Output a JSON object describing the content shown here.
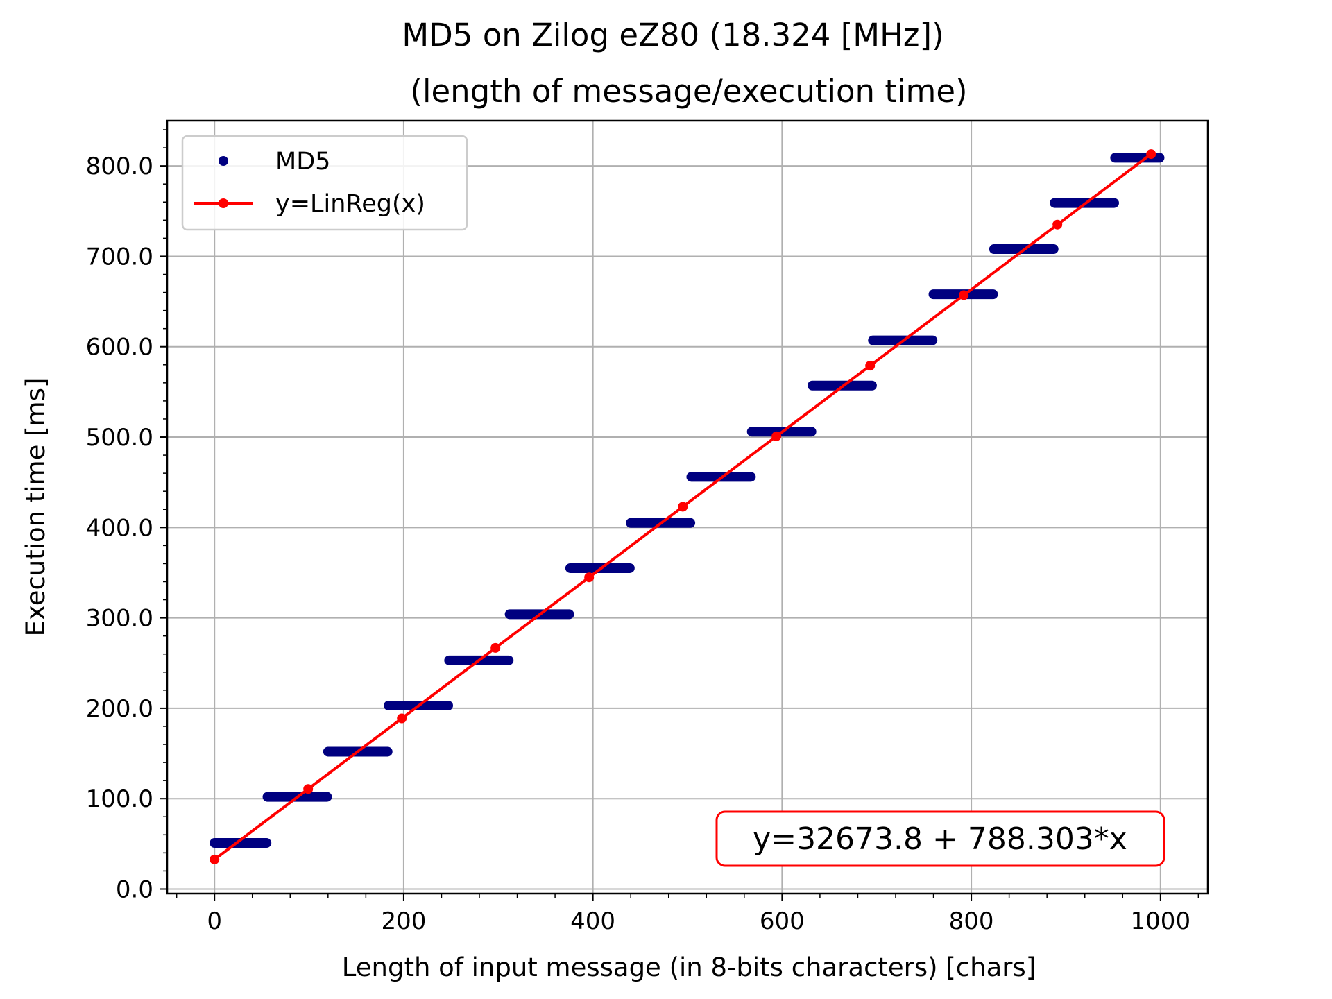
{
  "chart_data": {
    "type": "scatter",
    "title": "MD5 on Zilog eZ80 (18.324 [MHz])",
    "subtitle": "(length of message/execution time)",
    "xlabel": "Length of input message (in 8-bits characters) [chars]",
    "ylabel": "Execution time [ms]",
    "xlim": [
      -50,
      1050
    ],
    "ylim": [
      -5,
      850
    ],
    "xticks": [
      0,
      200,
      400,
      600,
      800,
      1000
    ],
    "xtick_labels": [
      "0",
      "200",
      "400",
      "600",
      "800",
      "1000"
    ],
    "yticks": [
      0,
      100,
      200,
      300,
      400,
      500,
      600,
      700,
      800
    ],
    "ytick_labels": [
      "0.0",
      "100.0",
      "200.0",
      "300.0",
      "400.0",
      "500.0",
      "600.0",
      "700.0",
      "800.0"
    ],
    "grid": true,
    "legend": {
      "position": "top-left",
      "entries": [
        "MD5",
        "y=LinReg(x)"
      ]
    },
    "series": [
      {
        "name": "MD5",
        "kind": "scatter",
        "color": "#000080",
        "steps": [
          {
            "x_start": 0,
            "x_end": 55,
            "y": 51
          },
          {
            "x_start": 56,
            "x_end": 119,
            "y": 102
          },
          {
            "x_start": 120,
            "x_end": 183,
            "y": 152
          },
          {
            "x_start": 184,
            "x_end": 247,
            "y": 203
          },
          {
            "x_start": 248,
            "x_end": 311,
            "y": 253
          },
          {
            "x_start": 312,
            "x_end": 375,
            "y": 304
          },
          {
            "x_start": 376,
            "x_end": 439,
            "y": 355
          },
          {
            "x_start": 440,
            "x_end": 503,
            "y": 405
          },
          {
            "x_start": 504,
            "x_end": 567,
            "y": 456
          },
          {
            "x_start": 568,
            "x_end": 631,
            "y": 506
          },
          {
            "x_start": 632,
            "x_end": 695,
            "y": 557
          },
          {
            "x_start": 696,
            "x_end": 759,
            "y": 607
          },
          {
            "x_start": 760,
            "x_end": 823,
            "y": 658
          },
          {
            "x_start": 824,
            "x_end": 887,
            "y": 708
          },
          {
            "x_start": 888,
            "x_end": 951,
            "y": 759
          },
          {
            "x_start": 952,
            "x_end": 999,
            "y": 809
          }
        ]
      },
      {
        "name": "y=LinReg(x)",
        "kind": "line",
        "color": "#ff0000",
        "x": [
          0,
          99,
          198,
          297,
          396,
          495,
          594,
          693,
          792,
          891,
          990
        ],
        "y": [
          32.7,
          110.7,
          188.8,
          266.8,
          344.8,
          422.9,
          500.9,
          579.0,
          657.0,
          735.1,
          813.1
        ]
      }
    ],
    "annotation": {
      "text": "y=32673.8 + 788.303*x",
      "position": "bottom-right",
      "border_color": "#ff0000"
    }
  }
}
